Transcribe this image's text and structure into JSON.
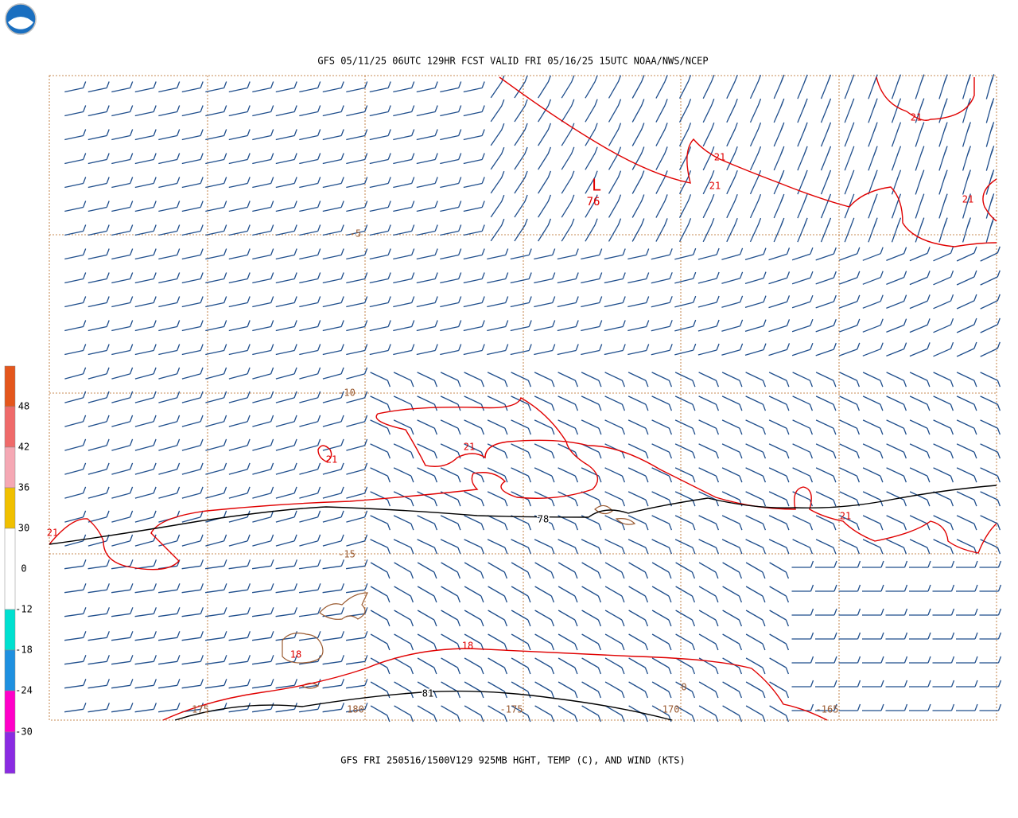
{
  "header": {
    "title": "GFS 05/11/25 06UTC 129HR FCST VALID FRI 05/16/25 15UTC NOAA/NWS/NCEP"
  },
  "footer": {
    "caption": "GFS FRI 250516/1500V129 925MB HGHT, TEMP (C), AND WIND (KTS)"
  },
  "legend": {
    "labels": [
      "48",
      "42",
      "36",
      "30",
      "0",
      "-12",
      "-18",
      "-24",
      "-30"
    ]
  },
  "map": {
    "lat_labels": [
      "-5",
      "-10",
      "-15"
    ],
    "lon_labels": [
      "175",
      "180",
      "-175",
      "-170",
      "-165"
    ],
    "temp_labels": [
      "21",
      "21",
      "21",
      "21",
      "21",
      "21",
      "21",
      "21",
      "18",
      "18",
      "0"
    ],
    "height_labels": [
      "78",
      "81"
    ],
    "low": {
      "symbol": "L",
      "value": "76"
    }
  }
}
